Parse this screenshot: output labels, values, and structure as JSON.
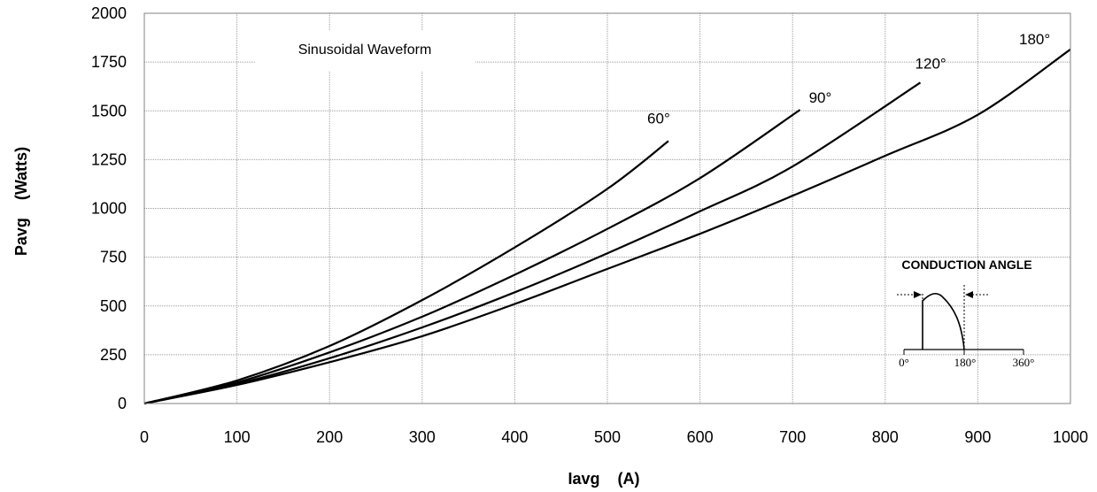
{
  "chart_data": {
    "type": "line",
    "xlabel": "Iavg    (A)",
    "ylabel": "Pavg    (Watts)",
    "xlim": [
      0,
      1000
    ],
    "ylim": [
      0,
      2000
    ],
    "x_ticks": [
      "0",
      "100",
      "200",
      "300",
      "400",
      "500",
      "600",
      "700",
      "800",
      "900",
      "1000"
    ],
    "y_ticks": [
      "0",
      "250",
      "500",
      "750",
      "1000",
      "1250",
      "1500",
      "1750",
      "2000"
    ],
    "grid": true,
    "annotation": "Sinusoidal Waveform",
    "series": [
      {
        "name": "60°",
        "x": [
          0,
          100,
          200,
          300,
          400,
          500,
          566
        ],
        "y": [
          0,
          118,
          295,
          530,
          800,
          1100,
          1345
        ]
      },
      {
        "name": "90°",
        "x": [
          0,
          100,
          200,
          300,
          400,
          500,
          600,
          708
        ],
        "y": [
          0,
          108,
          262,
          445,
          660,
          895,
          1155,
          1505
        ]
      },
      {
        "name": "120°",
        "x": [
          0,
          100,
          200,
          300,
          400,
          500,
          600,
          700,
          838
        ],
        "y": [
          0,
          100,
          232,
          390,
          570,
          770,
          985,
          1215,
          1645
        ]
      },
      {
        "name": "180°",
        "x": [
          0,
          100,
          200,
          300,
          400,
          500,
          600,
          700,
          800,
          900,
          1000
        ],
        "y": [
          0,
          95,
          212,
          345,
          510,
          690,
          870,
          1065,
          1270,
          1480,
          1815
        ]
      }
    ],
    "inset": {
      "title": "CONDUCTION ANGLE",
      "ticks": [
        "0°",
        "180°",
        "360°"
      ]
    }
  }
}
